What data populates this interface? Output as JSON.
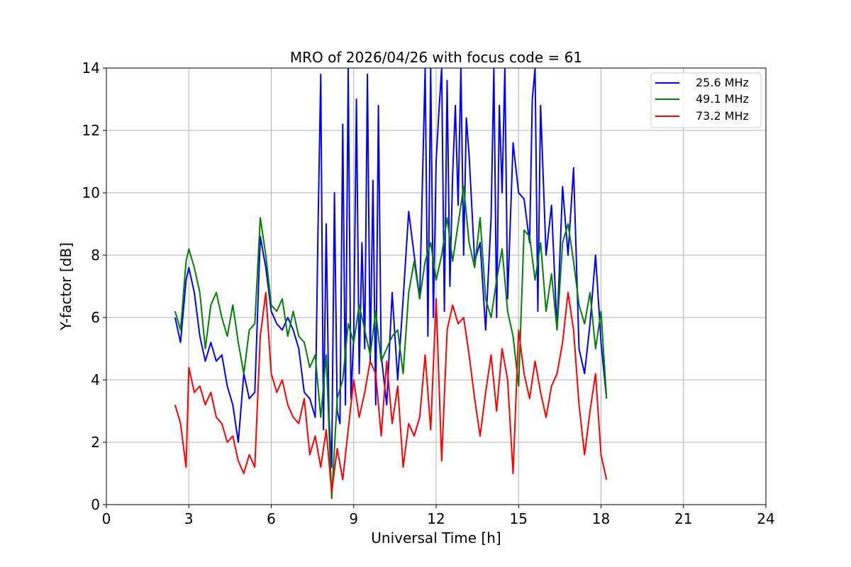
{
  "chart_data": {
    "type": "line",
    "title": "MRO of 2026/04/26 with focus code = 61",
    "xlabel": "Universal Time [h]",
    "ylabel": "Y-factor [dB]",
    "xlim": [
      0,
      24
    ],
    "ylim": [
      0,
      14
    ],
    "xticks": [
      0,
      3,
      6,
      9,
      12,
      15,
      18,
      21,
      24
    ],
    "yticks": [
      0,
      2,
      4,
      6,
      8,
      10,
      12,
      14
    ],
    "xtick_labels": [
      "0",
      "3",
      "6",
      "9",
      "12",
      "15",
      "18",
      "21",
      "24"
    ],
    "ytick_labels": [
      "0",
      "2",
      "4",
      "6",
      "8",
      "10",
      "12",
      "14"
    ],
    "grid": true,
    "legend_position": "top-right",
    "series": [
      {
        "name": "25.6 MHz",
        "color": "#0000ff",
        "x": [
          2.5,
          2.7,
          2.9,
          3.0,
          3.2,
          3.4,
          3.6,
          3.8,
          4.0,
          4.2,
          4.4,
          4.6,
          4.8,
          5.0,
          5.2,
          5.4,
          5.6,
          5.8,
          6.0,
          6.2,
          6.4,
          6.6,
          6.8,
          7.0,
          7.2,
          7.4,
          7.6,
          7.7,
          7.8,
          7.9,
          8.0,
          8.1,
          8.2,
          8.3,
          8.4,
          8.5,
          8.6,
          8.7,
          8.8,
          8.9,
          9.0,
          9.1,
          9.2,
          9.3,
          9.4,
          9.5,
          9.6,
          9.7,
          9.8,
          9.9,
          10.0,
          10.2,
          10.4,
          10.6,
          10.8,
          11.0,
          11.2,
          11.4,
          11.6,
          11.7,
          11.8,
          11.9,
          12.0,
          12.1,
          12.2,
          12.3,
          12.4,
          12.5,
          12.6,
          12.7,
          12.8,
          12.9,
          13.0,
          13.1,
          13.2,
          13.4,
          13.6,
          13.8,
          14.0,
          14.1,
          14.2,
          14.3,
          14.4,
          14.5,
          14.6,
          14.8,
          15.0,
          15.2,
          15.4,
          15.5,
          15.6,
          15.7,
          15.8,
          16.0,
          16.2,
          16.4,
          16.6,
          16.8,
          17.0,
          17.2,
          17.4,
          17.6,
          17.8,
          18.0,
          18.2
        ],
        "y": [
          6.0,
          5.2,
          7.2,
          7.6,
          6.8,
          5.4,
          4.6,
          5.2,
          4.6,
          4.8,
          3.8,
          3.2,
          2.0,
          4.2,
          3.4,
          3.6,
          8.6,
          7.6,
          6.2,
          5.8,
          5.6,
          6.0,
          5.6,
          5.0,
          3.6,
          3.4,
          2.8,
          8.8,
          13.8,
          2.4,
          9.0,
          2.8,
          1.2,
          10.0,
          3.0,
          2.6,
          12.2,
          3.2,
          14.0,
          3.4,
          5.4,
          13.0,
          4.2,
          8.4,
          5.0,
          13.8,
          4.6,
          10.4,
          3.2,
          12.8,
          4.8,
          3.2,
          6.8,
          4.0,
          6.6,
          9.4,
          8.0,
          6.6,
          14.0,
          5.4,
          14.0,
          6.0,
          11.0,
          12.6,
          14.0,
          6.2,
          13.6,
          7.0,
          10.6,
          12.8,
          9.6,
          14.0,
          8.0,
          12.4,
          11.2,
          7.8,
          8.4,
          5.6,
          9.2,
          14.0,
          6.0,
          12.8,
          10.0,
          14.0,
          6.6,
          11.6,
          10.0,
          9.8,
          8.4,
          13.0,
          14.0,
          6.2,
          12.8,
          8.0,
          9.6,
          5.6,
          10.2,
          8.0,
          10.8,
          5.0,
          4.2,
          5.8,
          8.0,
          5.2,
          3.4
        ]
      },
      {
        "name": "49.1 MHz",
        "color": "#008000",
        "x": [
          2.5,
          2.7,
          2.9,
          3.0,
          3.2,
          3.4,
          3.6,
          3.8,
          4.0,
          4.2,
          4.4,
          4.6,
          4.8,
          5.0,
          5.2,
          5.4,
          5.6,
          5.8,
          6.0,
          6.2,
          6.4,
          6.6,
          6.8,
          7.0,
          7.2,
          7.4,
          7.6,
          7.8,
          8.0,
          8.2,
          8.4,
          8.6,
          8.8,
          9.0,
          9.2,
          9.4,
          9.6,
          9.8,
          10.0,
          10.2,
          10.4,
          10.6,
          10.8,
          11.0,
          11.2,
          11.4,
          11.6,
          11.8,
          12.0,
          12.2,
          12.4,
          12.6,
          12.8,
          13.0,
          13.2,
          13.4,
          13.6,
          13.8,
          14.0,
          14.2,
          14.4,
          14.6,
          14.8,
          15.0,
          15.2,
          15.4,
          15.6,
          15.8,
          16.0,
          16.2,
          16.4,
          16.6,
          16.8,
          17.0,
          17.2,
          17.4,
          17.6,
          17.8,
          18.0,
          18.2
        ],
        "y": [
          6.2,
          5.6,
          7.8,
          8.2,
          7.6,
          6.8,
          5.0,
          6.4,
          6.8,
          6.0,
          5.4,
          6.4,
          5.2,
          4.2,
          5.6,
          5.8,
          9.2,
          8.0,
          6.4,
          6.2,
          6.6,
          5.4,
          6.2,
          5.4,
          5.2,
          4.4,
          4.8,
          2.8,
          4.8,
          0.2,
          3.4,
          4.0,
          5.8,
          5.2,
          6.4,
          5.6,
          4.8,
          6.2,
          4.6,
          5.0,
          5.4,
          5.6,
          4.2,
          6.8,
          7.8,
          6.6,
          7.8,
          8.4,
          7.2,
          8.0,
          9.2,
          7.8,
          9.0,
          10.2,
          8.4,
          7.6,
          9.2,
          6.6,
          6.0,
          7.2,
          8.2,
          6.2,
          5.4,
          3.8,
          8.8,
          8.6,
          7.2,
          8.4,
          6.2,
          7.4,
          5.6,
          8.4,
          9.0,
          7.8,
          6.4,
          5.8,
          6.8,
          5.0,
          6.2,
          3.4
        ]
      },
      {
        "name": "73.2 MHz",
        "color": "#ff0000",
        "x": [
          2.5,
          2.7,
          2.9,
          3.0,
          3.2,
          3.4,
          3.6,
          3.8,
          4.0,
          4.2,
          4.4,
          4.6,
          4.8,
          5.0,
          5.2,
          5.4,
          5.6,
          5.8,
          6.0,
          6.2,
          6.4,
          6.6,
          6.8,
          7.0,
          7.2,
          7.4,
          7.6,
          7.8,
          8.0,
          8.2,
          8.4,
          8.6,
          8.8,
          9.0,
          9.2,
          9.4,
          9.6,
          9.8,
          10.0,
          10.2,
          10.4,
          10.6,
          10.8,
          11.0,
          11.2,
          11.4,
          11.6,
          11.8,
          12.0,
          12.2,
          12.4,
          12.6,
          12.8,
          13.0,
          13.2,
          13.4,
          13.6,
          13.8,
          14.0,
          14.2,
          14.4,
          14.6,
          14.8,
          15.0,
          15.2,
          15.4,
          15.6,
          15.8,
          16.0,
          16.2,
          16.4,
          16.6,
          16.8,
          17.0,
          17.2,
          17.4,
          17.6,
          17.8,
          18.0,
          18.2
        ],
        "y": [
          3.2,
          2.6,
          1.2,
          4.4,
          3.6,
          3.8,
          3.2,
          3.6,
          2.8,
          2.6,
          2.0,
          2.2,
          1.4,
          1.0,
          1.6,
          1.2,
          5.4,
          6.8,
          4.2,
          3.6,
          4.0,
          3.2,
          2.8,
          2.6,
          3.4,
          1.6,
          2.2,
          1.2,
          2.4,
          0.4,
          1.8,
          0.8,
          2.4,
          4.0,
          2.8,
          3.6,
          4.6,
          4.2,
          2.2,
          4.6,
          2.6,
          3.8,
          1.2,
          2.6,
          2.2,
          2.8,
          4.8,
          2.4,
          6.6,
          1.4,
          5.6,
          6.4,
          5.8,
          6.0,
          4.8,
          3.4,
          2.2,
          3.6,
          4.8,
          3.0,
          5.0,
          4.0,
          1.0,
          5.6,
          4.2,
          3.4,
          4.6,
          3.6,
          2.8,
          3.8,
          4.2,
          5.2,
          6.8,
          5.6,
          3.2,
          1.6,
          3.0,
          4.2,
          1.6,
          0.8
        ]
      }
    ]
  }
}
